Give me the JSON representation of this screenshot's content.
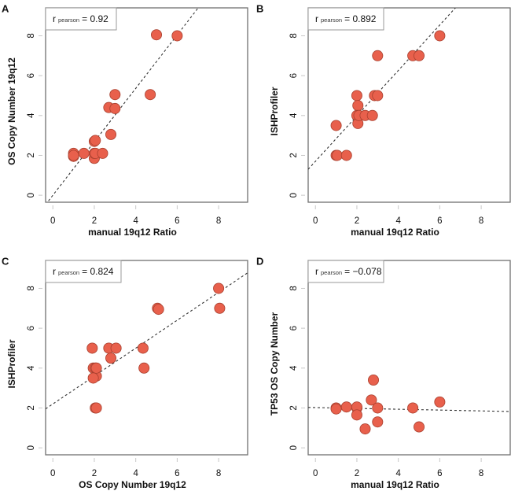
{
  "figure": {
    "dot_color": "#e8604c",
    "dot_outline_color": "#a8402f",
    "fit_line_color": "#333333"
  },
  "chart_data": [
    {
      "type": "scatter",
      "panel": "A",
      "xlabel": "manual 19q12 Ratio",
      "ylabel": "OS Copy Number 19q12",
      "xlim": [
        -0.35,
        9.4
      ],
      "ylim": [
        -0.35,
        9.4
      ],
      "xticks": [
        0,
        2,
        4,
        6,
        8
      ],
      "yticks": [
        0,
        2,
        4,
        6,
        8
      ],
      "legend": {
        "prefix": "r",
        "sub": "pearson",
        "value": "= 0.92",
        "placement": "top-left"
      },
      "fit": {
        "slope": 1.34,
        "intercept": 0.0
      },
      "points": [
        {
          "x": 1.0,
          "y": 2.1
        },
        {
          "x": 1.0,
          "y": 1.95
        },
        {
          "x": 1.0,
          "y": 2.0
        },
        {
          "x": 1.5,
          "y": 2.1
        },
        {
          "x": 2.0,
          "y": 2.7
        },
        {
          "x": 2.05,
          "y": 2.75
        },
        {
          "x": 2.0,
          "y": 1.85
        },
        {
          "x": 2.0,
          "y": 2.1
        },
        {
          "x": 2.05,
          "y": 2.1
        },
        {
          "x": 2.4,
          "y": 2.1
        },
        {
          "x": 2.8,
          "y": 3.05
        },
        {
          "x": 2.7,
          "y": 4.4
        },
        {
          "x": 3.0,
          "y": 4.35
        },
        {
          "x": 3.0,
          "y": 5.05
        },
        {
          "x": 4.7,
          "y": 5.05
        },
        {
          "x": 5.0,
          "y": 8.05
        },
        {
          "x": 6.0,
          "y": 8.0
        }
      ]
    },
    {
      "type": "scatter",
      "panel": "B",
      "xlabel": "manual 19q12 Ratio",
      "ylabel": "ISHProfiler",
      "xlim": [
        -0.35,
        9.4
      ],
      "ylim": [
        -0.35,
        9.4
      ],
      "xticks": [
        0,
        2,
        4,
        6,
        8
      ],
      "yticks": [
        0,
        2,
        4,
        6,
        8
      ],
      "legend": {
        "prefix": "r",
        "sub": "pearson",
        "value": "= 0.892",
        "placement": "top-left"
      },
      "fit": {
        "slope": 1.14,
        "intercept": 1.7
      },
      "points": [
        {
          "x": 1.0,
          "y": 3.5
        },
        {
          "x": 1.0,
          "y": 2.0
        },
        {
          "x": 1.05,
          "y": 2.0
        },
        {
          "x": 1.5,
          "y": 2.0
        },
        {
          "x": 2.0,
          "y": 5.0
        },
        {
          "x": 2.05,
          "y": 4.5
        },
        {
          "x": 2.0,
          "y": 4.0
        },
        {
          "x": 2.05,
          "y": 3.6
        },
        {
          "x": 2.1,
          "y": 4.0
        },
        {
          "x": 2.4,
          "y": 4.0
        },
        {
          "x": 2.75,
          "y": 4.0
        },
        {
          "x": 2.85,
          "y": 5.0
        },
        {
          "x": 3.0,
          "y": 5.0
        },
        {
          "x": 3.0,
          "y": 7.0
        },
        {
          "x": 4.7,
          "y": 7.0
        },
        {
          "x": 5.0,
          "y": 7.0
        },
        {
          "x": 6.0,
          "y": 8.0
        }
      ]
    },
    {
      "type": "scatter",
      "panel": "C",
      "xlabel": "OS Copy Number 19q12",
      "ylabel": "ISHProfiler",
      "xlim": [
        -0.35,
        9.4
      ],
      "ylim": [
        -0.35,
        9.4
      ],
      "xticks": [
        0,
        2,
        4,
        6,
        8
      ],
      "yticks": [
        0,
        2,
        4,
        6,
        8
      ],
      "legend": {
        "prefix": "r",
        "sub": "pearson",
        "value": "= 0.824",
        "placement": "top-left"
      },
      "fit": {
        "slope": 0.7,
        "intercept": 2.2
      },
      "points": [
        {
          "x": 1.9,
          "y": 5.0
        },
        {
          "x": 1.95,
          "y": 4.0
        },
        {
          "x": 2.05,
          "y": 4.0
        },
        {
          "x": 2.1,
          "y": 3.6
        },
        {
          "x": 1.95,
          "y": 3.5
        },
        {
          "x": 2.1,
          "y": 4.0
        },
        {
          "x": 2.05,
          "y": 2.0
        },
        {
          "x": 2.1,
          "y": 2.0
        },
        {
          "x": 2.7,
          "y": 5.0
        },
        {
          "x": 2.8,
          "y": 4.5
        },
        {
          "x": 3.05,
          "y": 5.0
        },
        {
          "x": 4.35,
          "y": 5.0
        },
        {
          "x": 4.4,
          "y": 4.0
        },
        {
          "x": 5.05,
          "y": 7.0
        },
        {
          "x": 5.1,
          "y": 6.95
        },
        {
          "x": 8.0,
          "y": 8.0
        },
        {
          "x": 8.05,
          "y": 7.0
        }
      ]
    },
    {
      "type": "scatter",
      "panel": "D",
      "xlabel": "manual 19q12 Ratio",
      "ylabel": "TP53 OS Copy Number",
      "xlim": [
        -0.35,
        9.4
      ],
      "ylim": [
        -0.35,
        9.4
      ],
      "xticks": [
        0,
        2,
        4,
        6,
        8
      ],
      "yticks": [
        0,
        2,
        4,
        6,
        8
      ],
      "legend": {
        "prefix": "r",
        "sub": "pearson",
        "value": "= −0.078",
        "placement": "top-left"
      },
      "fit": {
        "slope": -0.021,
        "intercept": 2.02
      },
      "points": [
        {
          "x": 1.0,
          "y": 2.0
        },
        {
          "x": 1.0,
          "y": 1.95
        },
        {
          "x": 1.5,
          "y": 2.05
        },
        {
          "x": 2.0,
          "y": 2.0
        },
        {
          "x": 2.0,
          "y": 2.05
        },
        {
          "x": 2.0,
          "y": 1.65
        },
        {
          "x": 2.4,
          "y": 0.95
        },
        {
          "x": 2.7,
          "y": 2.4
        },
        {
          "x": 2.8,
          "y": 3.4
        },
        {
          "x": 3.0,
          "y": 2.0
        },
        {
          "x": 3.0,
          "y": 1.3
        },
        {
          "x": 4.7,
          "y": 2.0
        },
        {
          "x": 5.0,
          "y": 1.05
        },
        {
          "x": 6.0,
          "y": 2.3
        }
      ]
    }
  ]
}
